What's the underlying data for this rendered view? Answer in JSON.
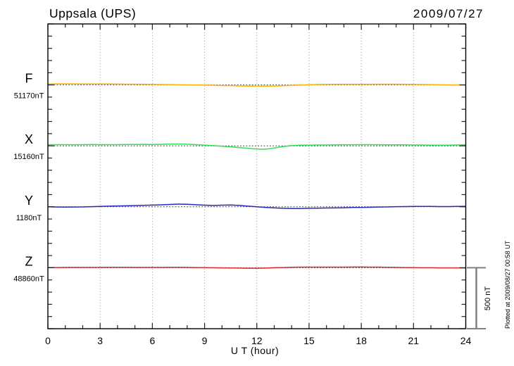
{
  "header": {
    "title": "Uppsala (UPS)",
    "date": "2009/07/27"
  },
  "chart_data": {
    "type": "line",
    "title": "Uppsala (UPS)",
    "date_label": "2009/07/27",
    "xlabel": "U T (hour)",
    "x_range": [
      0,
      24
    ],
    "x_ticks": [
      0,
      3,
      6,
      9,
      12,
      15,
      18,
      21,
      24
    ],
    "x_minor_tick_hours": 1,
    "x_step_hours": 0.5,
    "y_tick_nT": 100,
    "panel_spacing_nT": 500,
    "grid": "dotted vertical gridlines every 3 hours; dotted horizontal baseline per component",
    "legend_position": "left",
    "scale_bar": {
      "label": "500 nT",
      "span_nT": 500
    },
    "footer_note": "Plotted at 2009/08/27 00:58 UT",
    "series": [
      {
        "name": "F",
        "baseline_label": "51170nT",
        "unit": "nT",
        "color": "#FFB000",
        "values": [
          8,
          9,
          9,
          9,
          8,
          8,
          8,
          8,
          7,
          6,
          6,
          5,
          4,
          3,
          2,
          1,
          0,
          -1,
          -2,
          -3,
          -5,
          -6,
          -8,
          -9,
          -10,
          -10,
          -9,
          -7,
          -4,
          -2,
          1,
          3,
          4,
          5,
          5,
          5,
          5,
          5,
          6,
          6,
          6,
          5,
          4,
          3,
          2,
          1,
          0,
          -1,
          -2
        ]
      },
      {
        "name": "X",
        "baseline_label": "15160nT",
        "unit": "nT",
        "color": "#33DD55",
        "values": [
          9,
          10,
          10,
          9,
          10,
          11,
          10,
          10,
          10,
          11,
          11,
          12,
          11,
          12,
          14,
          15,
          13,
          10,
          6,
          2,
          -3,
          -8,
          -14,
          -20,
          -26,
          -28,
          -18,
          -6,
          2,
          5,
          6,
          7,
          7,
          8,
          9,
          9,
          10,
          10,
          9,
          8,
          8,
          8,
          7,
          7,
          6,
          5,
          6,
          7,
          8
        ]
      },
      {
        "name": "Y",
        "baseline_label": "1180nT",
        "unit": "nT",
        "color": "#2929BE",
        "values": [
          0,
          -2,
          -3,
          -2,
          -1,
          1,
          3,
          5,
          7,
          8,
          10,
          12,
          14,
          16,
          19,
          22,
          21,
          17,
          13,
          11,
          13,
          15,
          11,
          5,
          0,
          -5,
          -9,
          -12,
          -14,
          -14,
          -12,
          -11,
          -10,
          -9,
          -8,
          -6,
          -5,
          -4,
          -2,
          -1,
          1,
          2,
          3,
          3,
          3,
          2,
          2,
          3,
          4
        ]
      },
      {
        "name": "Z",
        "baseline_label": "48860nT",
        "unit": "nT",
        "color": "#DD2B2B",
        "values": [
          2,
          2,
          3,
          3,
          3,
          3,
          3,
          4,
          4,
          4,
          3,
          3,
          3,
          3,
          4,
          4,
          3,
          2,
          1,
          0,
          -1,
          -2,
          -3,
          -4,
          -4,
          -3,
          0,
          2,
          4,
          5,
          5,
          5,
          5,
          5,
          5,
          6,
          6,
          5,
          5,
          4,
          3,
          2,
          1,
          0,
          0,
          -1,
          -1,
          -1,
          -2
        ]
      }
    ]
  },
  "colors": {
    "grid": "#999999",
    "baseline": "#3C3C3C",
    "frame": "#000000",
    "tick": "#222222",
    "scale_bar": "#808080"
  }
}
